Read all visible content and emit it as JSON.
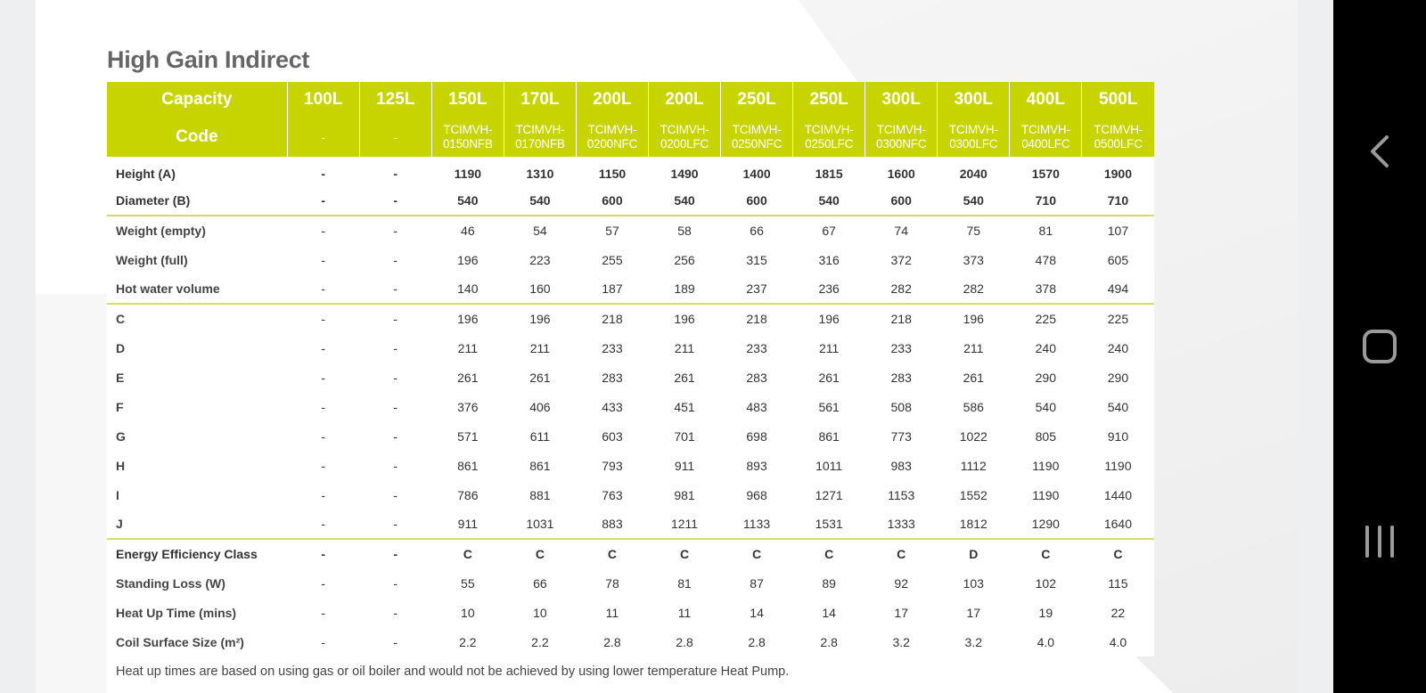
{
  "page": {
    "title": "High Gain Indirect"
  },
  "table": {
    "capacity_label": "Capacity",
    "code_label": "Code",
    "capacities": [
      "100L",
      "125L",
      "150L",
      "170L",
      "200L",
      "200L",
      "250L",
      "250L",
      "300L",
      "300L",
      "400L",
      "500L"
    ],
    "codes": [
      [
        "-"
      ],
      [
        "-"
      ],
      [
        "TCIMVH-",
        "0150NFB"
      ],
      [
        "TCIMVH-",
        "0170NFB"
      ],
      [
        "TCIMVH-",
        "0200NFC"
      ],
      [
        "TCIMVH-",
        "0200LFC"
      ],
      [
        "TCIMVH-",
        "0250NFC"
      ],
      [
        "TCIMVH-",
        "0250LFC"
      ],
      [
        "TCIMVH-",
        "0300NFC"
      ],
      [
        "TCIMVH-",
        "0300LFC"
      ],
      [
        "TCIMVH-",
        "0400LFC"
      ],
      [
        "TCIMVH-",
        "0500LFC"
      ]
    ],
    "rows": [
      {
        "label": "Height (A)",
        "bold": true,
        "values": [
          "-",
          "-",
          "1190",
          "1310",
          "1150",
          "1490",
          "1400",
          "1815",
          "1600",
          "2040",
          "1570",
          "1900"
        ]
      },
      {
        "label": "Diameter (B)",
        "bold": true,
        "group_end": true,
        "values": [
          "-",
          "-",
          "540",
          "540",
          "600",
          "540",
          "600",
          "540",
          "600",
          "540",
          "710",
          "710"
        ]
      },
      {
        "label": "Weight (empty)",
        "values": [
          "-",
          "-",
          "46",
          "54",
          "57",
          "58",
          "66",
          "67",
          "74",
          "75",
          "81",
          "107"
        ]
      },
      {
        "label": "Weight (full)",
        "values": [
          "-",
          "-",
          "196",
          "223",
          "255",
          "256",
          "315",
          "316",
          "372",
          "373",
          "478",
          "605"
        ]
      },
      {
        "label": "Hot water volume",
        "group_end": true,
        "values": [
          "-",
          "-",
          "140",
          "160",
          "187",
          "189",
          "237",
          "236",
          "282",
          "282",
          "378",
          "494"
        ]
      },
      {
        "label": "C",
        "values": [
          "-",
          "-",
          "196",
          "196",
          "218",
          "196",
          "218",
          "196",
          "218",
          "196",
          "225",
          "225"
        ]
      },
      {
        "label": "D",
        "values": [
          "-",
          "-",
          "211",
          "211",
          "233",
          "211",
          "233",
          "211",
          "233",
          "211",
          "240",
          "240"
        ]
      },
      {
        "label": "E",
        "values": [
          "-",
          "-",
          "261",
          "261",
          "283",
          "261",
          "283",
          "261",
          "283",
          "261",
          "290",
          "290"
        ]
      },
      {
        "label": "F",
        "values": [
          "-",
          "-",
          "376",
          "406",
          "433",
          "451",
          "483",
          "561",
          "508",
          "586",
          "540",
          "540"
        ]
      },
      {
        "label": "G",
        "values": [
          "-",
          "-",
          "571",
          "611",
          "603",
          "701",
          "698",
          "861",
          "773",
          "1022",
          "805",
          "910"
        ]
      },
      {
        "label": "H",
        "values": [
          "-",
          "-",
          "861",
          "861",
          "793",
          "911",
          "893",
          "1011",
          "983",
          "1112",
          "1190",
          "1190"
        ]
      },
      {
        "label": "I",
        "values": [
          "-",
          "-",
          "786",
          "881",
          "763",
          "981",
          "968",
          "1271",
          "1153",
          "1552",
          "1190",
          "1440"
        ]
      },
      {
        "label": "J",
        "group_end": true,
        "values": [
          "-",
          "-",
          "911",
          "1031",
          "883",
          "1211",
          "1133",
          "1531",
          "1333",
          "1812",
          "1290",
          "1640"
        ]
      },
      {
        "label": "Energy Efficiency Class",
        "bold": true,
        "values": [
          "-",
          "-",
          "C",
          "C",
          "C",
          "C",
          "C",
          "C",
          "C",
          "D",
          "C",
          "C"
        ]
      },
      {
        "label": "Standing Loss (W)",
        "values": [
          "-",
          "-",
          "55",
          "66",
          "78",
          "81",
          "87",
          "89",
          "92",
          "103",
          "102",
          "115"
        ]
      },
      {
        "label": "Heat Up Time (mins)",
        "values": [
          "-",
          "-",
          "10",
          "10",
          "11",
          "11",
          "14",
          "14",
          "17",
          "17",
          "19",
          "22"
        ]
      },
      {
        "label": "Coil Surface Size (m²)",
        "values": [
          "-",
          "-",
          "2.2",
          "2.2",
          "2.8",
          "2.8",
          "2.8",
          "2.8",
          "3.2",
          "3.2",
          "4.0",
          "4.0"
        ]
      }
    ],
    "footnote": "Heat up times are based on using gas or oil boiler and would not be achieved by using lower temperature Heat Pump."
  },
  "nav": {
    "buttons": [
      {
        "icon": "back-chevron-icon"
      },
      {
        "icon": "home-square-icon"
      },
      {
        "icon": "recent-apps-icon"
      }
    ]
  },
  "colors": {
    "header_green": "#c8d400",
    "divider_green": "#d8dc66",
    "title_grey": "#666666",
    "nav_background": "#000000"
  }
}
